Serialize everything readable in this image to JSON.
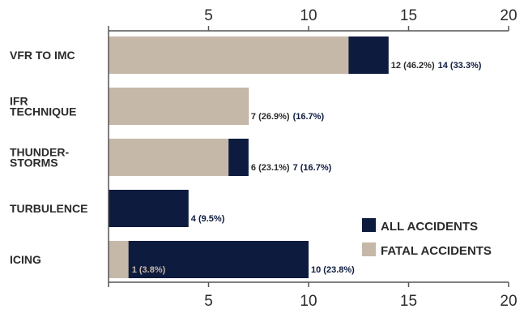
{
  "colors": {
    "all": "#0d1b3e",
    "fatal": "#c6b8a8",
    "axis": "#555555",
    "text": "#2b2b2b"
  },
  "chart_data": {
    "type": "bar",
    "orientation": "horizontal",
    "categories": [
      [
        "VFR TO IMC"
      ],
      [
        "IFR",
        "TECHNIQUE"
      ],
      [
        "THUNDER-",
        "STORMS"
      ],
      [
        "TURBULENCE"
      ],
      [
        "ICING"
      ]
    ],
    "series": [
      {
        "name": "ALL ACCIDENTS",
        "values": [
          14,
          7,
          7,
          4,
          10
        ],
        "labels": [
          "14 (33.3%)",
          "(16.7%)",
          "7 (16.7%)",
          "4 (9.5%)",
          "10 (23.8%)"
        ]
      },
      {
        "name": "FATAL ACCIDENTS",
        "values": [
          12,
          7,
          6,
          0,
          1
        ],
        "labels": [
          "12 (46.2%)",
          "7 (26.9%)",
          "6 (23.1%)",
          "",
          "1 (3.8%)"
        ]
      }
    ],
    "xlim": [
      0,
      20
    ],
    "xticks": [
      5,
      10,
      15,
      20
    ],
    "axis_position": "top and bottom",
    "grid": false,
    "legend_position": "bottom-right"
  }
}
